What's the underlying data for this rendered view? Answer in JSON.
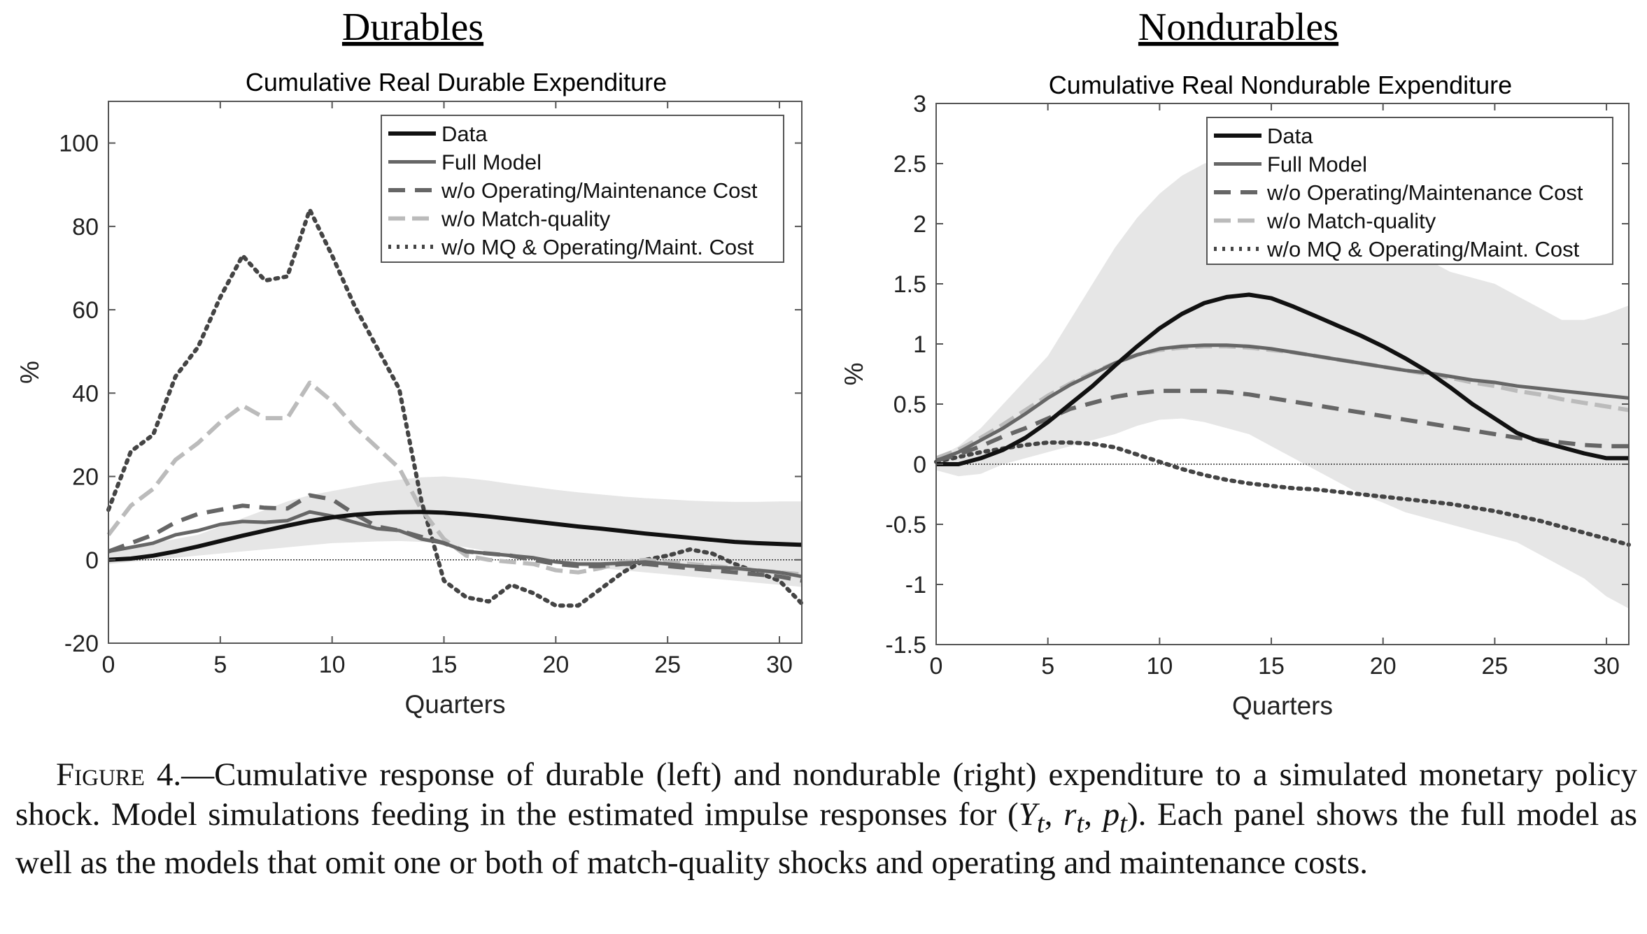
{
  "figure": {
    "caption_label": "Figure 4.",
    "caption_parts": {
      "a": "—Cumulative response of durable (left) and nondurable (right) expenditure to a simulated monetary policy shock. Model simulations feeding in the estimated impulse responses for (",
      "b": "). Each panel shows the full model as well as the models that omit one or both of match-quality shocks and operating and maintenance costs."
    },
    "caption_math": {
      "y": "Y",
      "r": "r",
      "p": "p",
      "sub": "t",
      "sep": ", "
    }
  },
  "styles": {
    "Data": {
      "color": "#111111",
      "width": 6,
      "dash": ""
    },
    "Full Model": {
      "color": "#666666",
      "width": 5,
      "dash": ""
    },
    "w/o Operating/Maintenance Cost": {
      "color": "#666666",
      "width": 6,
      "dash": "24,14"
    },
    "w/o Match-quality": {
      "color": "#bbbbbb",
      "width": 6,
      "dash": "24,10"
    },
    "w/o MQ & Operating/Maint. Cost": {
      "color": "#444444",
      "width": 6,
      "dash": "4,8"
    },
    "band_color": "#e6e6e6"
  },
  "chart_data": [
    {
      "type": "line",
      "panel_label": "Durables",
      "title": "Cumulative Real Durable Expenditure",
      "xlabel": "Quarters",
      "ylabel": "%",
      "xlim": [
        0,
        31
      ],
      "ylim": [
        -20,
        110
      ],
      "xticks": [
        0,
        5,
        10,
        15,
        20,
        25,
        30
      ],
      "yticks": [
        -20,
        0,
        20,
        40,
        60,
        80,
        100
      ],
      "legend_position": "top-right",
      "zero_line": true,
      "x": [
        0,
        1,
        2,
        3,
        4,
        5,
        6,
        7,
        8,
        9,
        10,
        11,
        12,
        13,
        14,
        15,
        16,
        17,
        18,
        19,
        20,
        21,
        22,
        23,
        24,
        25,
        26,
        27,
        28,
        29,
        30,
        31
      ],
      "band": {
        "upper": [
          2,
          3,
          4,
          5,
          6,
          8,
          10,
          12,
          14,
          15.5,
          16.5,
          17.5,
          18.5,
          19.2,
          19.8,
          20,
          19.6,
          19,
          18.2,
          17.5,
          16.8,
          16.2,
          15.7,
          15.2,
          14.8,
          14.5,
          14.2,
          14,
          13.9,
          13.9,
          14,
          14
        ],
        "lower": [
          -1,
          -0.5,
          0,
          0.5,
          1,
          1.5,
          2,
          2.5,
          3,
          3.5,
          4,
          4.2,
          4.4,
          4.5,
          4.3,
          3.8,
          3,
          2,
          1,
          0,
          -0.8,
          -1.5,
          -2,
          -2.5,
          -3,
          -3.5,
          -4,
          -4.5,
          -5,
          -5.5,
          -6,
          -6.5
        ]
      },
      "series": [
        {
          "name": "Data",
          "values": [
            0,
            0.3,
            1,
            2,
            3.2,
            4.5,
            5.8,
            7,
            8.2,
            9.3,
            10.2,
            10.8,
            11.2,
            11.4,
            11.5,
            11.3,
            10.9,
            10.4,
            9.8,
            9.2,
            8.6,
            8,
            7.5,
            6.9,
            6.3,
            5.8,
            5.3,
            4.8,
            4.3,
            4,
            3.8,
            3.6
          ]
        },
        {
          "name": "Full Model",
          "values": [
            2,
            3,
            4,
            6,
            7,
            8.5,
            9.2,
            9,
            9.4,
            11.5,
            10.5,
            9,
            7.5,
            7,
            5,
            4,
            2,
            1.5,
            1,
            0.5,
            -0.5,
            -1,
            -1,
            -0.8,
            -0.5,
            -1,
            -1.5,
            -1.8,
            -2,
            -2.5,
            -3,
            -4
          ]
        },
        {
          "name": "w/o Operating/Maintenance Cost",
          "values": [
            2,
            4,
            6,
            9,
            11,
            12,
            13,
            12.5,
            12.3,
            15.5,
            14.5,
            11,
            8,
            7,
            5.5,
            4,
            2,
            1.5,
            1,
            0,
            -1,
            -1.5,
            -1.5,
            -1,
            -1,
            -1.5,
            -2,
            -2.5,
            -3,
            -3.5,
            -4,
            -5
          ]
        },
        {
          "name": "w/o Match-quality",
          "values": [
            6,
            13,
            17,
            24,
            28,
            33,
            37,
            34,
            34,
            42.5,
            38,
            32,
            27,
            22,
            12,
            5,
            1,
            0,
            -0.5,
            -1,
            -2.5,
            -3,
            -2,
            -0.5,
            0,
            -0.5,
            -1,
            -1.5,
            -2,
            -2.5,
            -3,
            -3.5
          ]
        },
        {
          "name": "w/o MQ & Operating/Maint. Cost",
          "values": [
            12,
            26,
            30,
            44,
            51,
            63,
            73,
            67,
            68,
            84,
            73,
            61,
            51,
            41,
            14,
            -5,
            -9,
            -10,
            -6,
            -8,
            -11,
            -11,
            -7,
            -3,
            0,
            1,
            2.5,
            1.5,
            -1,
            -3,
            -5,
            -10.5
          ]
        }
      ]
    },
    {
      "type": "line",
      "panel_label": "Nondurables",
      "title": "Cumulative Real Nondurable Expenditure",
      "xlabel": "Quarters",
      "ylabel": "%",
      "xlim": [
        0,
        31
      ],
      "ylim": [
        -1.5,
        3
      ],
      "xticks": [
        0,
        5,
        10,
        15,
        20,
        25,
        30
      ],
      "yticks": [
        -1.5,
        -1,
        -0.5,
        0,
        0.5,
        1,
        1.5,
        2,
        2.5,
        3
      ],
      "legend_position": "top-right",
      "zero_line": true,
      "x": [
        0,
        1,
        2,
        3,
        4,
        5,
        6,
        7,
        8,
        9,
        10,
        11,
        12,
        13,
        14,
        15,
        16,
        17,
        18,
        19,
        20,
        21,
        22,
        23,
        24,
        25,
        26,
        27,
        28,
        29,
        30,
        31
      ],
      "band": {
        "upper": [
          0.05,
          0.15,
          0.3,
          0.5,
          0.7,
          0.9,
          1.2,
          1.5,
          1.8,
          2.05,
          2.25,
          2.4,
          2.5,
          2.55,
          2.55,
          2.5,
          2.45,
          2.35,
          2.2,
          2.05,
          1.9,
          1.8,
          1.7,
          1.6,
          1.55,
          1.5,
          1.4,
          1.3,
          1.2,
          1.2,
          1.25,
          1.32
        ],
        "lower": [
          -0.05,
          -0.1,
          -0.08,
          0,
          0.05,
          0.1,
          0.15,
          0.2,
          0.25,
          0.32,
          0.37,
          0.38,
          0.35,
          0.3,
          0.25,
          0.15,
          0.05,
          -0.05,
          -0.15,
          -0.25,
          -0.32,
          -0.4,
          -0.45,
          -0.5,
          -0.55,
          -0.6,
          -0.65,
          -0.75,
          -0.85,
          -0.95,
          -1.1,
          -1.2
        ]
      },
      "series": [
        {
          "name": "Data",
          "values": [
            0,
            0,
            0.05,
            0.12,
            0.22,
            0.35,
            0.5,
            0.65,
            0.82,
            0.98,
            1.13,
            1.25,
            1.34,
            1.39,
            1.41,
            1.38,
            1.31,
            1.23,
            1.15,
            1.07,
            0.98,
            0.88,
            0.77,
            0.64,
            0.5,
            0.38,
            0.26,
            0.19,
            0.14,
            0.09,
            0.05,
            0.05
          ]
        },
        {
          "name": "Full Model",
          "values": [
            0.03,
            0.1,
            0.2,
            0.3,
            0.42,
            0.55,
            0.66,
            0.75,
            0.84,
            0.91,
            0.96,
            0.98,
            0.99,
            0.99,
            0.98,
            0.96,
            0.93,
            0.9,
            0.87,
            0.84,
            0.81,
            0.78,
            0.76,
            0.73,
            0.7,
            0.68,
            0.65,
            0.63,
            0.61,
            0.59,
            0.57,
            0.55
          ]
        },
        {
          "name": "w/o Operating/Maintenance Cost",
          "values": [
            0.03,
            0.08,
            0.15,
            0.23,
            0.3,
            0.38,
            0.46,
            0.51,
            0.56,
            0.59,
            0.61,
            0.61,
            0.61,
            0.6,
            0.58,
            0.55,
            0.52,
            0.49,
            0.46,
            0.43,
            0.4,
            0.37,
            0.34,
            0.31,
            0.28,
            0.25,
            0.22,
            0.2,
            0.18,
            0.16,
            0.15,
            0.15
          ]
        },
        {
          "name": "w/o Match-quality",
          "values": [
            0.05,
            0.12,
            0.22,
            0.33,
            0.45,
            0.57,
            0.67,
            0.76,
            0.84,
            0.91,
            0.95,
            0.97,
            0.98,
            0.98,
            0.97,
            0.95,
            0.93,
            0.9,
            0.87,
            0.84,
            0.81,
            0.78,
            0.75,
            0.72,
            0.68,
            0.65,
            0.61,
            0.58,
            0.54,
            0.51,
            0.48,
            0.45
          ]
        },
        {
          "name": "w/o MQ & Operating/Maint. Cost",
          "values": [
            0.02,
            0.06,
            0.1,
            0.13,
            0.16,
            0.18,
            0.18,
            0.17,
            0.14,
            0.08,
            0.02,
            -0.04,
            -0.09,
            -0.13,
            -0.16,
            -0.18,
            -0.2,
            -0.21,
            -0.23,
            -0.25,
            -0.27,
            -0.29,
            -0.31,
            -0.33,
            -0.36,
            -0.39,
            -0.43,
            -0.47,
            -0.52,
            -0.57,
            -0.62,
            -0.67
          ]
        }
      ]
    }
  ]
}
